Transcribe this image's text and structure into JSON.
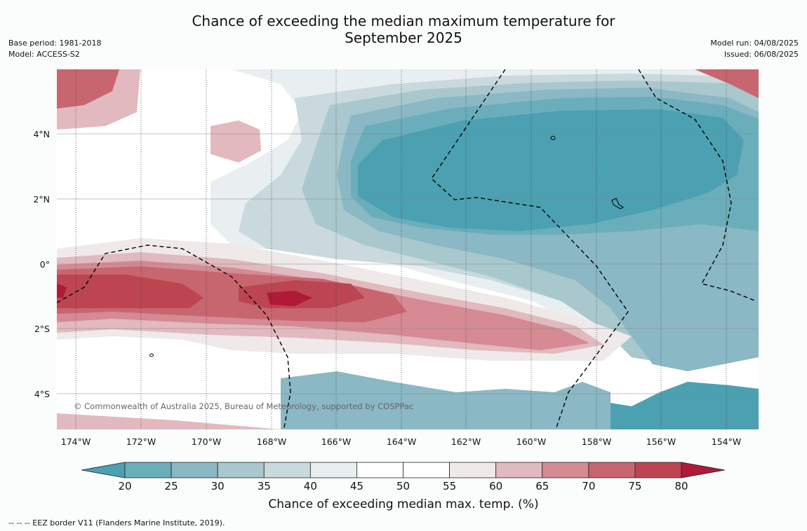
{
  "header": {
    "title_line1": "Chance of exceeding the median maximum temperature for",
    "title_line2": "September 2025",
    "base_period": "Base period: 1981-2018",
    "model": "Model: ACCESS-S2",
    "model_run": "Model run: 04/08/2025",
    "issued": "Issued: 06/08/2025"
  },
  "map": {
    "copyright": "© Commonwealth of Australia 2025, Bureau of Meteorology, supported by COSPPac",
    "lon_labels": [
      "174°W",
      "172°W",
      "170°W",
      "168°W",
      "166°W",
      "164°W",
      "162°W",
      "160°W",
      "158°W",
      "156°W",
      "154°W"
    ],
    "lat_labels": [
      "4°N",
      "2°N",
      "0°",
      "2°S",
      "4°S"
    ]
  },
  "colorbar": {
    "ticks": [
      "20",
      "25",
      "30",
      "35",
      "40",
      "45",
      "50",
      "55",
      "60",
      "65",
      "70",
      "75",
      "80"
    ],
    "colors": [
      "#4ba1b1",
      "#6aaebb",
      "#8ab8c4",
      "#a8c8cd",
      "#c9d9dd",
      "#e9eef0",
      "#ffffff",
      "#ffffff",
      "#efe9ea",
      "#e1b9bf",
      "#d58a94",
      "#c8666f",
      "#bd4552",
      "#b01a37"
    ],
    "label": "Chance of exceeding median max. temp. (%)"
  },
  "legend": {
    "eez": "--  --  -- EEZ border V11 (Flanders Marine Institute, 2019)."
  }
}
